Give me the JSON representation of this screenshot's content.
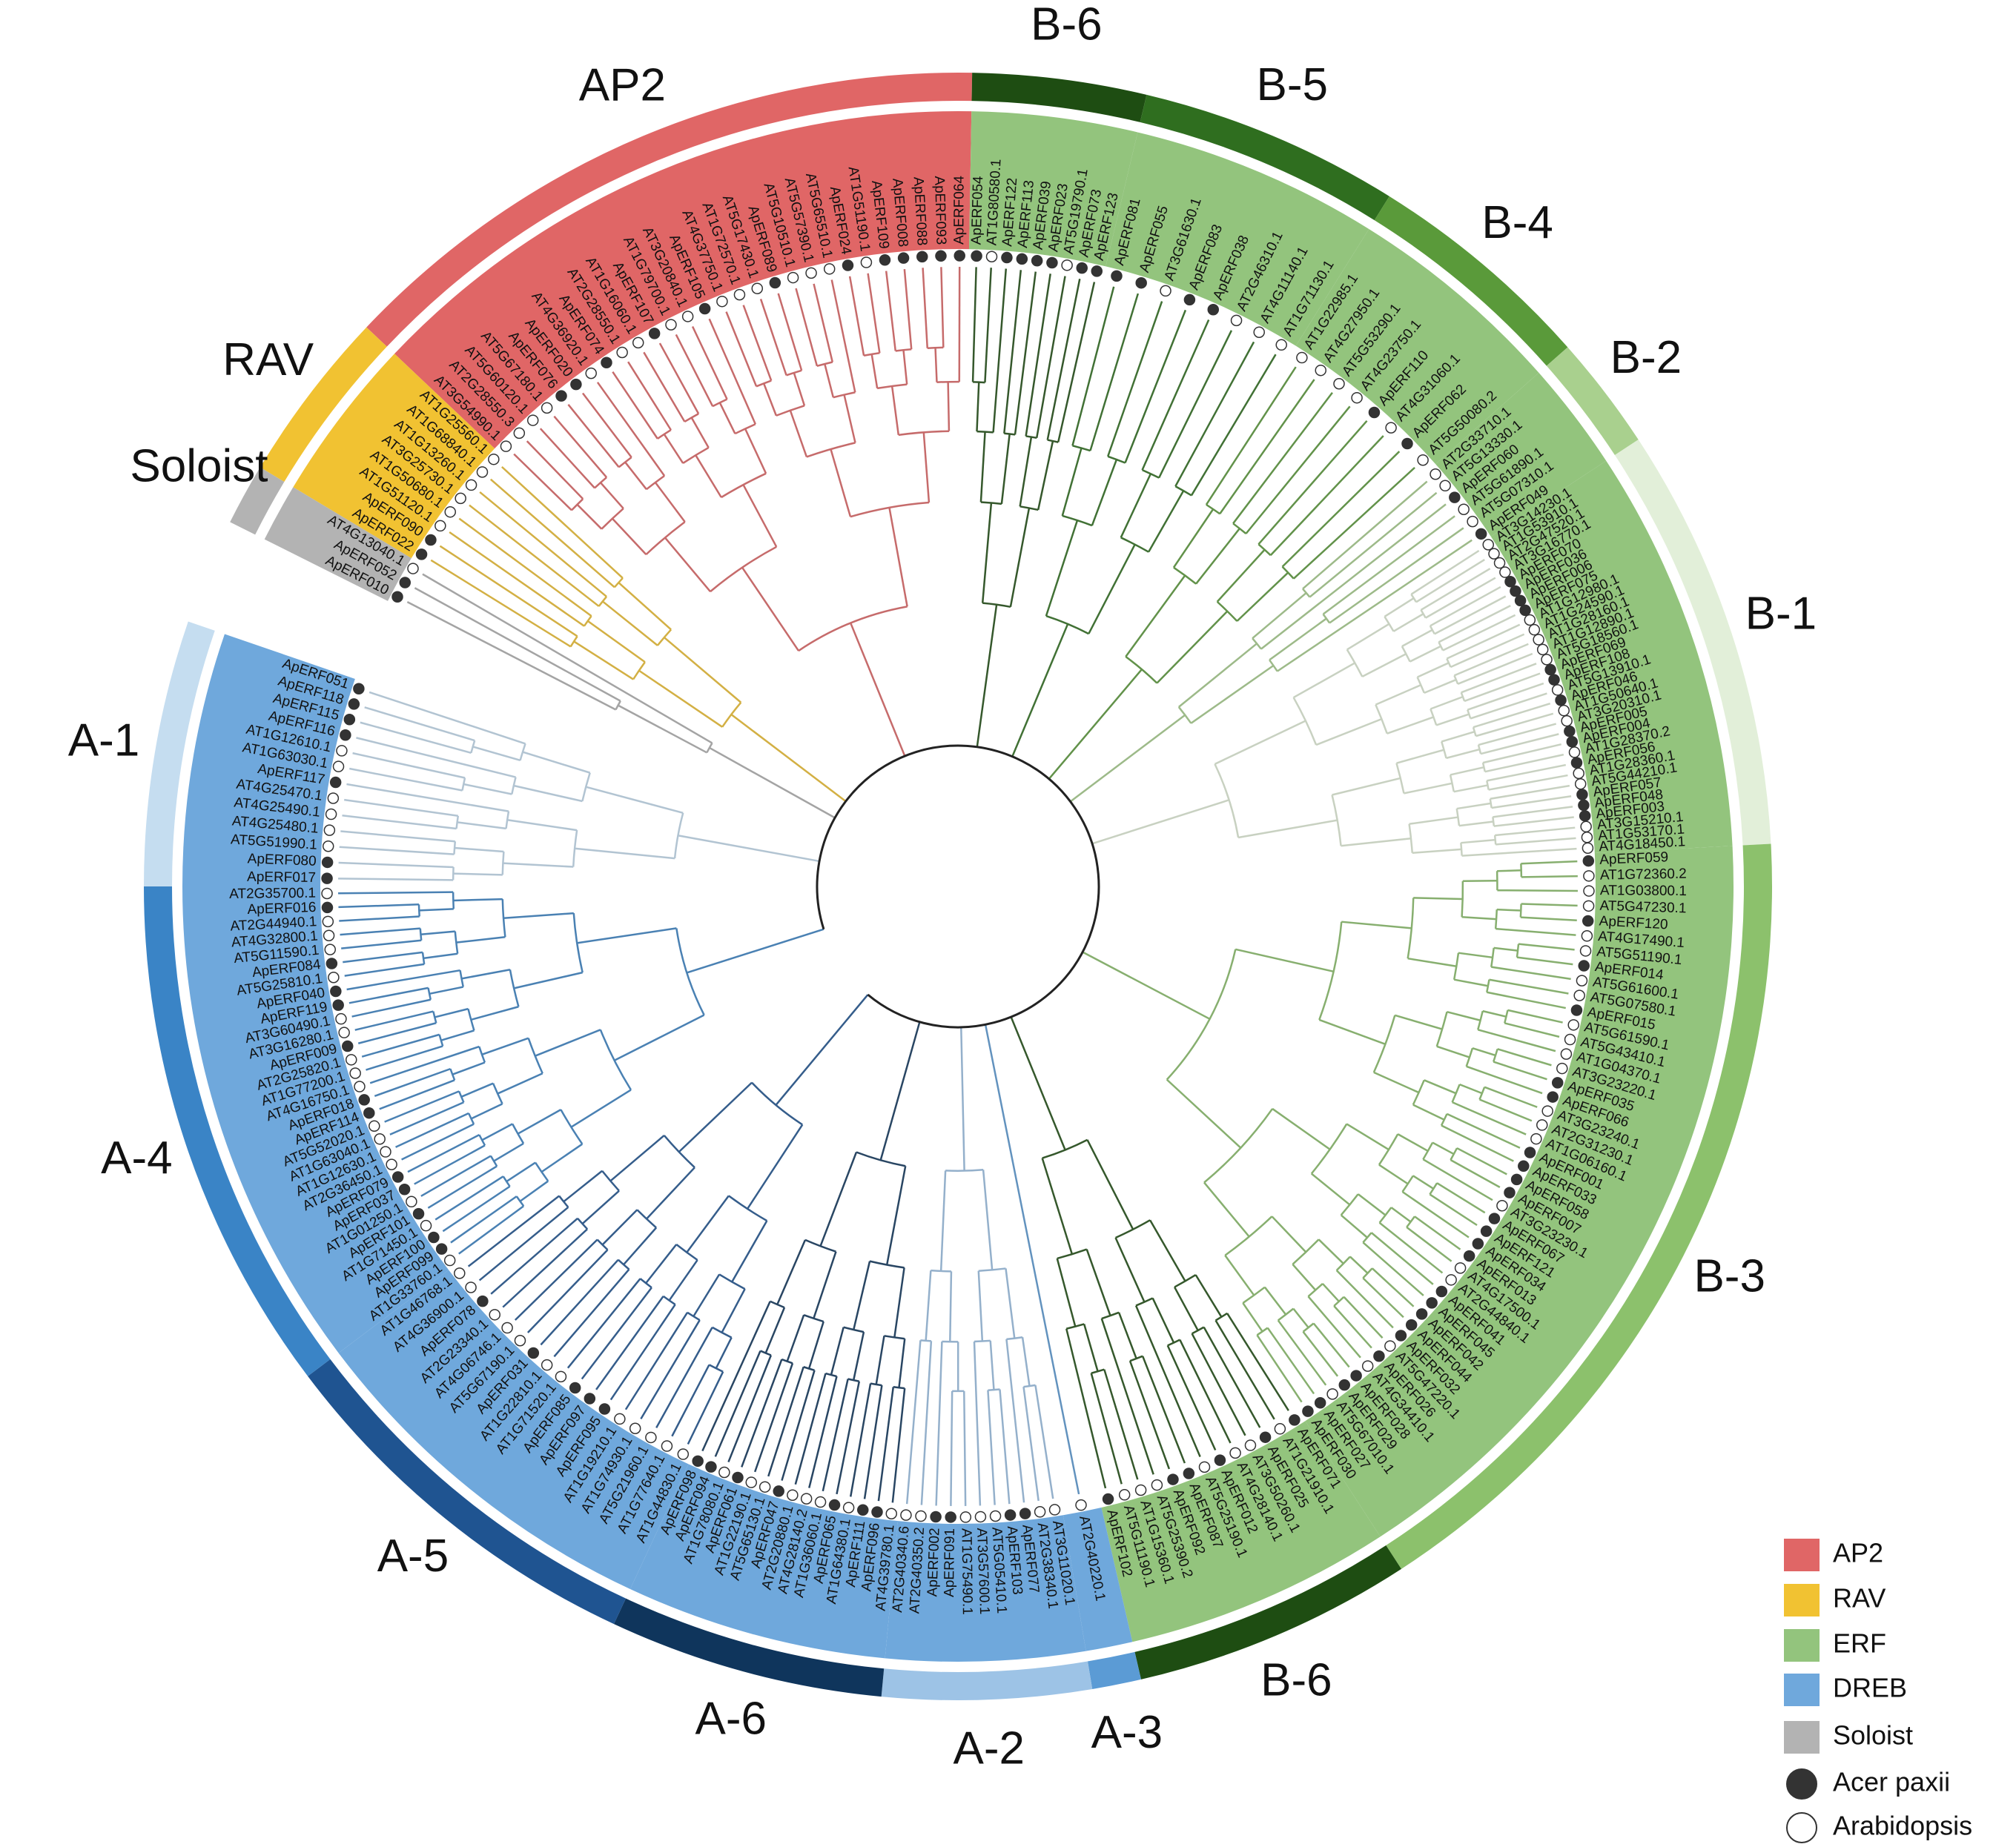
{
  "families": [
    {
      "name": "AP2",
      "color": "#e06666",
      "groups": [
        {
          "label": "AP2",
          "color": "#e06666",
          "leaves": [
            "AT3G54990.1",
            "AT2G28550.3",
            "AT5G60120.1",
            "AT5G67180.1",
            "ApERF076",
            "ApERF020",
            "AT4G36920.1",
            "ApERF074",
            "AT2G28550.1",
            "AT1G16060.1",
            "ApERF107",
            "AT1G79700.1",
            "AT3G20840.1",
            "ApERF105",
            "AT4G37750.1",
            "AT1G72570.1",
            "AT5G17430.1",
            "ApERF089",
            "AT5G10510.1",
            "AT5G57390.1",
            "AT5G65510.1",
            "ApERF024",
            "AT1G51190.1",
            "ApERF109",
            "ApERF008",
            "ApERF088",
            "ApERF093",
            "ApERF064"
          ]
        }
      ]
    },
    {
      "name": "RAV",
      "color": "#f1c232",
      "groups": [
        {
          "label": "RAV",
          "color": "#f1c232",
          "leaves": [
            "ApERF022",
            "ApERF090",
            "AT1G51120.1",
            "AT1G50680.1",
            "AT3G25730.1",
            "AT1G13260.1",
            "AT1G68840.1",
            "AT1G25560.1"
          ]
        }
      ]
    },
    {
      "name": "ERF",
      "color": "#93c47d",
      "groups": [
        {
          "label": "B-6",
          "color": "#1e4d12",
          "leaves": [
            "ApERF054",
            "AT1G80580.1",
            "ApERF122",
            "ApERF113",
            "ApERF039",
            "ApERF023",
            "AT5G19790.1",
            "ApERF073",
            "ApERF123"
          ]
        },
        {
          "label": "B-5",
          "color": "#2f6e1f",
          "leaves": [
            "ApERF081",
            "ApERF055",
            "AT3G61630.1",
            "ApERF083",
            "ApERF038",
            "AT2G46310.1",
            "AT4G11140.1",
            "AT1G71130.1"
          ]
        },
        {
          "label": "B-4",
          "color": "#5a9a3a",
          "leaves": [
            "AT1G22985.1",
            "AT4G27950.1",
            "AT5G53290.1",
            "AT4G23750.1",
            "ApERF110",
            "AT4G31060.1",
            "ApERF062",
            "AT5G50080.2"
          ]
        },
        {
          "label": "B-2",
          "color": "#a9d08e",
          "leaves": [
            "AT2G33710.1",
            "AT5G13330.1",
            "ApERF060",
            "AT5G61890.1",
            "AT5G07310.1",
            "ApERF049"
          ]
        },
        {
          "label": "B-1",
          "color": "#e2efd9",
          "leaves": [
            "AT3G14230.1",
            "AT1G53910.1",
            "AT2G47520.1",
            "AT3G16770.1",
            "ApERF070",
            "ApERF036",
            "ApERF006",
            "ApERF075",
            "AT1G12980.1",
            "AT1G24590.1",
            "AT1G28160.1",
            "AT1G12890.1",
            "AT5G18560.1",
            "ApERF069",
            "ApERF108",
            "AT5G13910.1",
            "ApERF046",
            "AT1G50640.1",
            "AT3G20310.1",
            "ApERF005",
            "ApERF004",
            "AT1G28370.2",
            "ApERF056",
            "AT1G28360.1",
            "AT5G44210.1",
            "ApERF057",
            "ApERF048",
            "ApERF003",
            "AT3G15210.1",
            "AT1G53170.1",
            "AT4G18450.1"
          ]
        },
        {
          "label": "B-3",
          "color": "#8cc16c",
          "leaves": [
            "ApERF059",
            "AT1G72360.2",
            "AT1G03800.1",
            "AT5G47230.1",
            "ApERF120",
            "AT4G17490.1",
            "AT5G51190.1",
            "ApERF014",
            "AT5G61600.1",
            "AT5G07580.1",
            "ApERF015",
            "AT5G61590.1",
            "AT5G43410.1",
            "AT1G04370.1",
            "AT3G23220.1",
            "ApERF035",
            "ApERF066",
            "AT3G23240.1",
            "AT2G31230.1",
            "AT1G06160.1",
            "ApERF001",
            "ApERF033",
            "ApERF058",
            "ApERF007",
            "AT3G23230.1",
            "ApERF067",
            "ApERF121",
            "ApERF034",
            "ApERF013",
            "AT4G17500.1",
            "AT2G44840.1",
            "ApERF041",
            "ApERF045",
            "ApERF042",
            "ApERF044",
            "ApERF032",
            "AT5G47220.1",
            "ApERF026",
            "AT4G34410.1",
            "ApERF028",
            "ApERF029",
            "AT5G67010.1",
            "ApERF027",
            "ApERF030"
          ]
        },
        {
          "label": "B-6",
          "color": "#1e4d12",
          "leaves": [
            "ApERF071",
            "AT1G21910.1",
            "ApERF025",
            "AT3G50260.1",
            "AT4G28140.1",
            "ApERF012",
            "AT5G25190.1",
            "ApERF087",
            "ApERF092",
            "AT5G25390.2",
            "AT1G15360.1",
            "AT5G11190.1",
            "ApERF102"
          ]
        }
      ]
    },
    {
      "name": "DREB",
      "color": "#6fa8dc",
      "groups": [
        {
          "label": "A-3",
          "color": "#5b9bd5",
          "leaves": [
            "AT2G40220.1"
          ]
        },
        {
          "label": "A-2",
          "color": "#9dc3e6",
          "leaves": [
            "AT3G11020.1",
            "AT2G38340.1",
            "ApERF077",
            "ApERF103",
            "AT5G05410.1",
            "AT3G57600.1",
            "AT1G75490.1",
            "ApERF091",
            "ApERF002",
            "AT2G40350.2",
            "AT2G40340.6"
          ]
        },
        {
          "label": "A-6",
          "color": "#0f355c",
          "leaves": [
            "AT4G39780.1",
            "ApERF096",
            "ApERF111",
            "AT1G64380.1",
            "ApERF065",
            "AT1G36060.1",
            "AT4G28140.2",
            "AT2G20880.1",
            "ApERF047",
            "AT5G65130.1",
            "AT1G22190.1",
            "ApERF061",
            "AT1G78080.1",
            "ApERF094",
            "ApERF098"
          ]
        },
        {
          "label": "A-5",
          "color": "#1f5491",
          "leaves": [
            "AT1G44830.1",
            "AT1G77640.1",
            "AT5G21960.1",
            "AT1G74930.1",
            "AT1G19210.1",
            "ApERF095",
            "ApERF097",
            "ApERF085",
            "AT1G71520.1",
            "AT1G22810.1",
            "ApERF031",
            "AT5G67190.1",
            "AT4G06746.1",
            "AT2G23340.1",
            "ApERF078",
            "AT4G36900.1",
            "AT1G46768.1"
          ]
        },
        {
          "label": "A-4",
          "color": "#3a84c6",
          "leaves": [
            "AT1G33760.1",
            "ApERF099",
            "ApERF100",
            "AT1G71450.1",
            "ApERF101",
            "AT1G01250.1",
            "ApERF037",
            "ApERF079",
            "AT2G36450.1",
            "AT1G12630.1",
            "AT1G63040.1",
            "AT5G52020.1",
            "ApERF114",
            "ApERF018",
            "AT4G16750.1",
            "AT1G77200.1",
            "AT2G25820.1",
            "ApERF009",
            "AT3G16280.1",
            "AT3G60490.1",
            "ApERF119",
            "ApERF040",
            "AT5G25810.1",
            "ApERF084",
            "AT5G11590.1",
            "AT4G32800.1",
            "AT2G44940.1",
            "ApERF016",
            "AT2G35700.1"
          ]
        },
        {
          "label": "A-1",
          "color": "#c5ddf0",
          "leaves": [
            "ApERF017",
            "ApERF080",
            "AT5G51990.1",
            "AT4G25480.1",
            "AT4G25490.1",
            "AT4G25470.1",
            "ApERF117",
            "AT1G63030.1",
            "AT1G12610.1",
            "ApERF116",
            "ApERF115",
            "ApERF118",
            "ApERF051"
          ]
        }
      ]
    },
    {
      "name": "Soloist",
      "color": "#b3b3b3",
      "groups": [
        {
          "label": "Soloist",
          "color": "#b3b3b3",
          "leaves": [
            "ApERF010",
            "ApERF052",
            "AT4G13040.1"
          ]
        }
      ]
    }
  ],
  "markers": [
    {
      "label": "Acer paxii",
      "fill": "#333333"
    },
    {
      "label": "Arabidopsis",
      "fill": "#ffffff"
    }
  ]
}
